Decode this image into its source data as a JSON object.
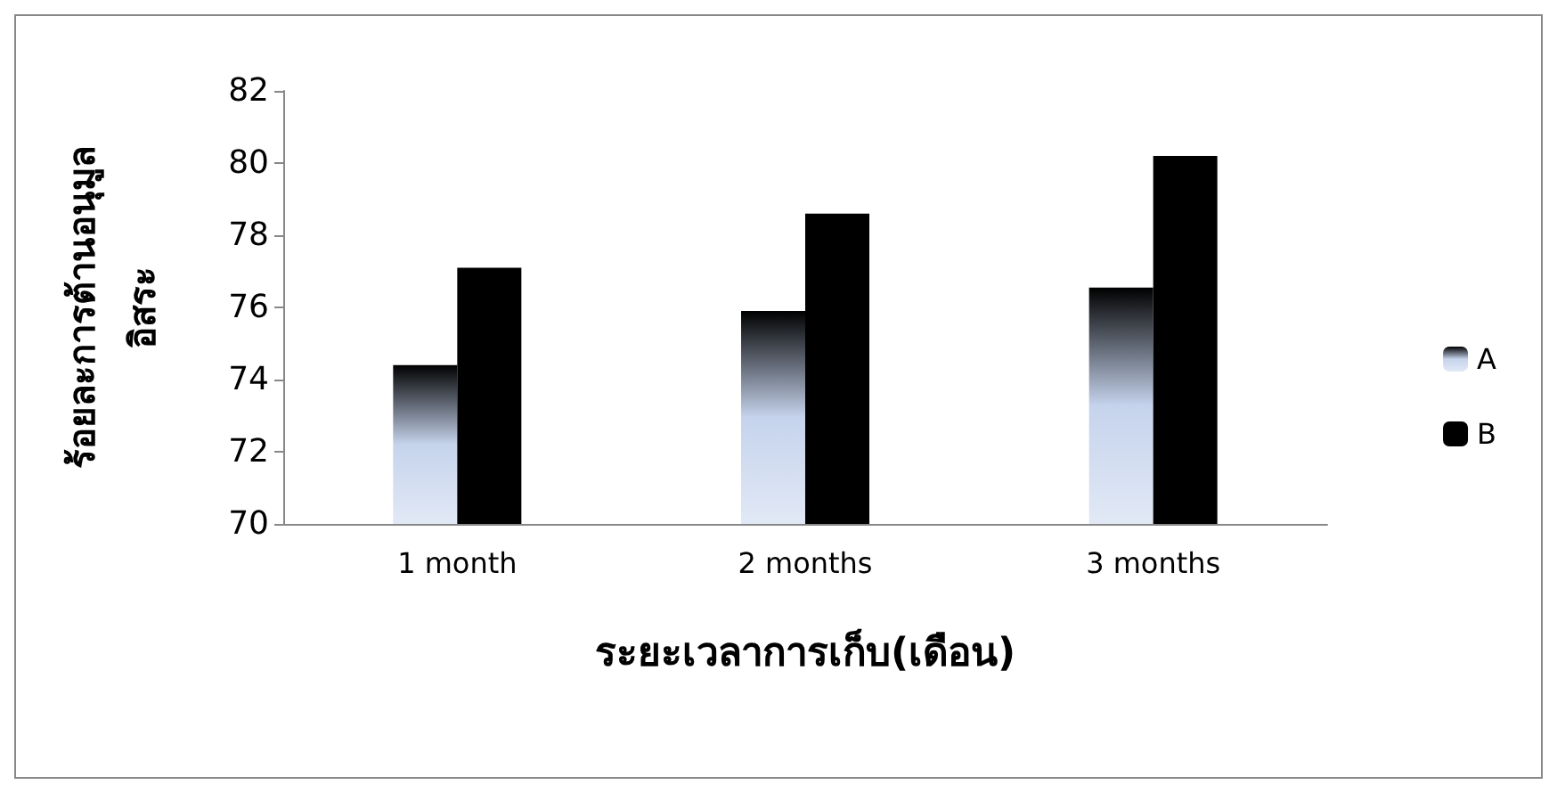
{
  "chart_data": {
    "type": "bar",
    "categories": [
      "1 month",
      "2 months",
      "3 months"
    ],
    "series": [
      {
        "name": "A",
        "color": "#c5d3ec",
        "values": [
          74.4,
          75.9,
          76.55
        ]
      },
      {
        "name": "B",
        "color": "#000000",
        "values": [
          77.1,
          78.6,
          80.2
        ]
      }
    ],
    "xlabel": "ระยะเวลาการเก็บ(เดือน)",
    "ylabel": "ร้อยละการต้านอนุมูล\nอิสระ",
    "ylim": [
      70,
      82
    ],
    "yticks": [
      70,
      72,
      74,
      76,
      78,
      80,
      82
    ],
    "grid": false,
    "legend": "right"
  }
}
